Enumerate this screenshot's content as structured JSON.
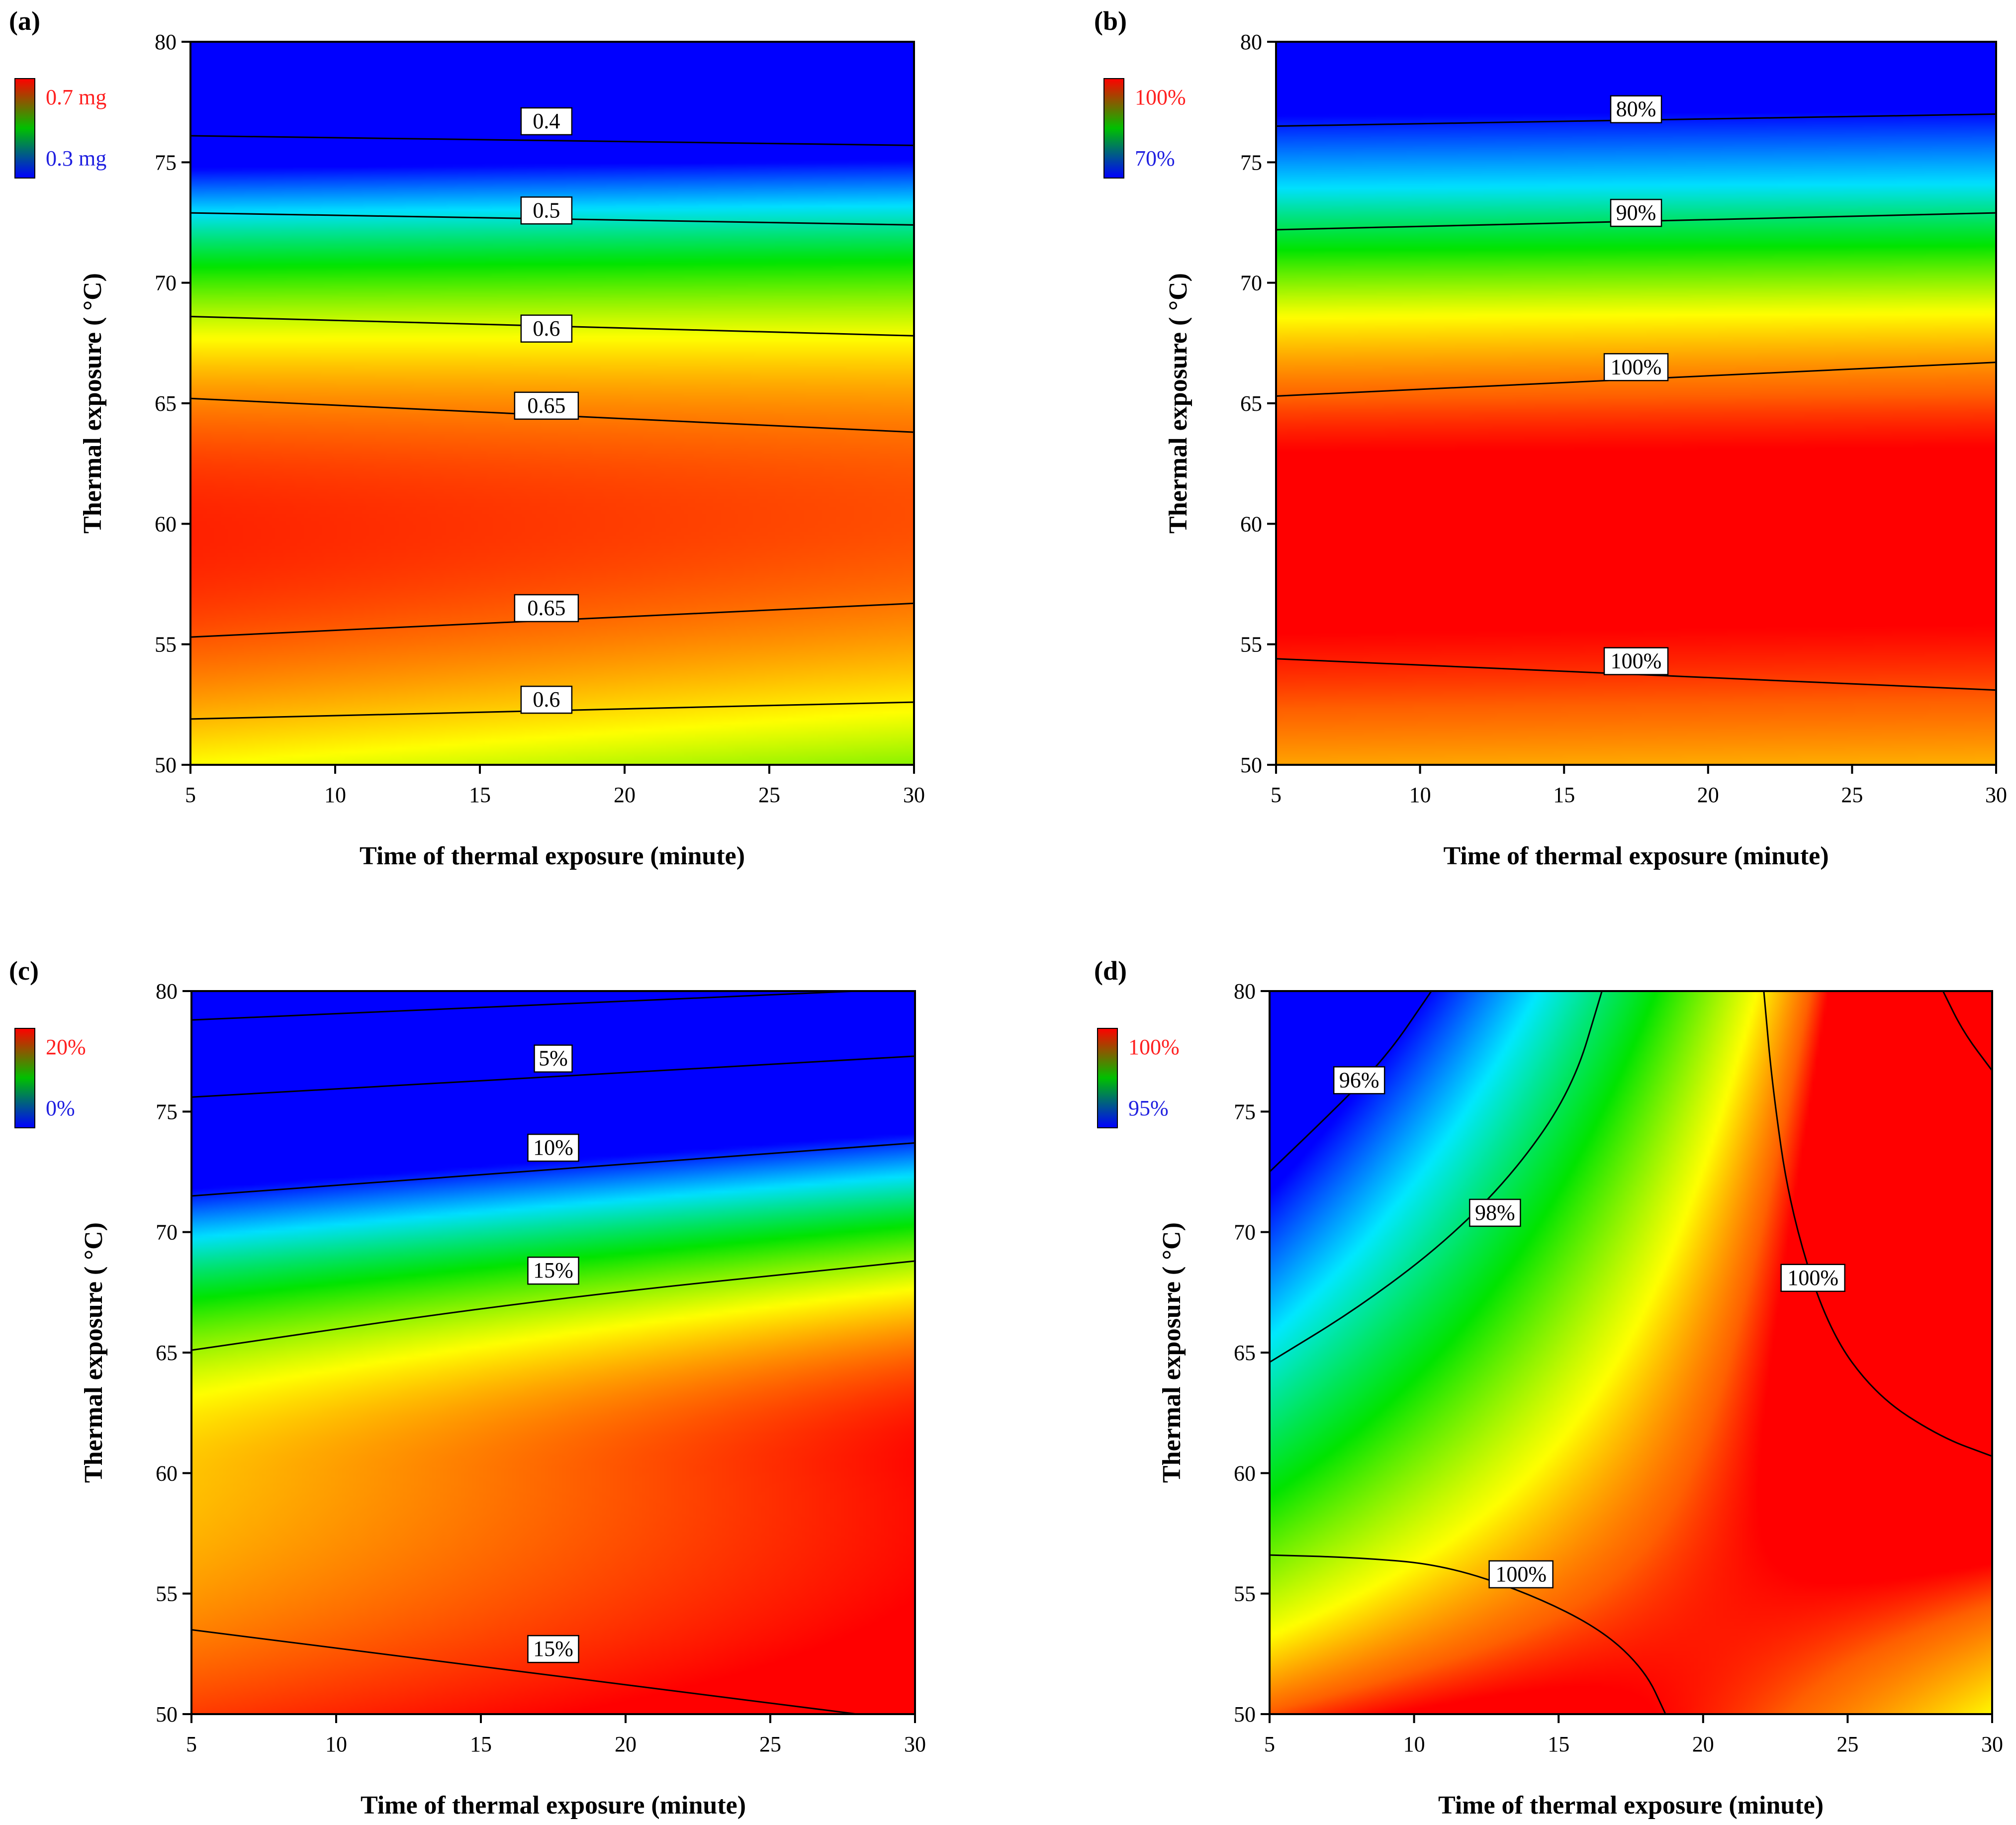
{
  "chart_data": [
    {
      "panel_label": "(a)",
      "type": "heatmap",
      "xlabel": "Time of thermal exposure (minute)",
      "ylabel": "Thermal exposure ( °C)",
      "xlim": [
        5,
        30
      ],
      "ylim": [
        50,
        80
      ],
      "xticks": [
        5,
        10,
        15,
        20,
        25,
        30
      ],
      "yticks": [
        50,
        55,
        60,
        65,
        70,
        75,
        80
      ],
      "color_legend": {
        "high_label": "0.7 mg",
        "high_color": "#ff2020",
        "low_label": "0.3 mg",
        "low_color": "#2020e0",
        "high_value": 0.7,
        "low_value": 0.3
      },
      "color_scale": [
        [
          0.3,
          "#0000ff"
        ],
        [
          0.4,
          "#00e0ff"
        ],
        [
          0.5,
          "#00e400"
        ],
        [
          0.6,
          "#ffff00"
        ],
        [
          0.68,
          "#ff5a00"
        ],
        [
          0.72,
          "#ff0000"
        ]
      ],
      "model": {
        "form": "quadratic",
        "a": -0.12,
        "bx": 0.0,
        "by": 0.0,
        "cx": 0.0,
        "cy": -0.9,
        "dxy": -0.06,
        "center": 0.66
      },
      "contours": [
        {
          "label": "0.4",
          "points": [
            [
              5,
              76.1
            ],
            [
              30,
              75.7
            ]
          ],
          "label_at": [
            17.3,
            76.7
          ]
        },
        {
          "label": "0.5",
          "points": [
            [
              5,
              72.9
            ],
            [
              30,
              72.4
            ]
          ],
          "label_at": [
            17.3,
            73.0
          ]
        },
        {
          "label": "0.6",
          "points": [
            [
              5,
              68.6
            ],
            [
              30,
              67.8
            ]
          ],
          "label_at": [
            17.3,
            68.1
          ]
        },
        {
          "label": "0.65",
          "points": [
            [
              5,
              65.2
            ],
            [
              30,
              63.8
            ]
          ],
          "label_at": [
            17.3,
            64.9
          ]
        },
        {
          "label": "0.65",
          "points": [
            [
              5,
              55.3
            ],
            [
              30,
              56.7
            ]
          ],
          "label_at": [
            17.3,
            56.5
          ]
        },
        {
          "label": "0.6",
          "points": [
            [
              5,
              51.9
            ],
            [
              30,
              52.6
            ]
          ],
          "label_at": [
            17.3,
            52.7
          ]
        }
      ]
    },
    {
      "panel_label": "(b)",
      "type": "heatmap",
      "xlabel": "Time of thermal exposure (minute)",
      "ylabel": "Thermal exposure ( °C)",
      "xlim": [
        5,
        30
      ],
      "ylim": [
        50,
        80
      ],
      "xticks": [
        5,
        10,
        15,
        20,
        25,
        30
      ],
      "yticks": [
        50,
        55,
        60,
        65,
        70,
        75,
        80
      ],
      "color_legend": {
        "high_label": "100%",
        "high_color": "#ff2020",
        "low_label": "70%",
        "low_color": "#2020e0",
        "high_value": 100,
        "low_value": 70
      },
      "color_scale": [
        [
          70,
          "#0000ff"
        ],
        [
          80,
          "#00e0ff"
        ],
        [
          87,
          "#00e400"
        ],
        [
          93,
          "#ffff00"
        ],
        [
          98,
          "#ff6000"
        ],
        [
          100,
          "#ff0000"
        ]
      ],
      "contours": [
        {
          "label": "80%",
          "points": [
            [
              5,
              76.5
            ],
            [
              30,
              77.0
            ]
          ],
          "label_at": [
            17.5,
            77.2
          ]
        },
        {
          "label": "90%",
          "points": [
            [
              5,
              72.2
            ],
            [
              30,
              72.9
            ]
          ],
          "label_at": [
            17.5,
            72.9
          ]
        },
        {
          "label": "100%",
          "points": [
            [
              5,
              65.3
            ],
            [
              30,
              66.7
            ]
          ],
          "label_at": [
            17.5,
            66.5
          ]
        },
        {
          "label": "100%",
          "points": [
            [
              5,
              54.4
            ],
            [
              30,
              53.1
            ]
          ],
          "label_at": [
            17.5,
            54.3
          ]
        }
      ]
    },
    {
      "panel_label": "(c)",
      "type": "heatmap",
      "xlabel": "Time of thermal exposure (minute)",
      "ylabel": "Thermal exposure ( °C)",
      "xlim": [
        5,
        30
      ],
      "ylim": [
        50,
        80
      ],
      "xticks": [
        5,
        10,
        15,
        20,
        25,
        30
      ],
      "yticks": [
        50,
        55,
        60,
        65,
        70,
        75,
        80
      ],
      "color_legend": {
        "high_label": "20%",
        "high_color": "#ff2020",
        "low_label": "0%",
        "low_color": "#2020e0",
        "high_value": 20,
        "low_value": 0
      },
      "color_scale": [
        [
          0,
          "#0000ff"
        ],
        [
          5,
          "#00e0ff"
        ],
        [
          10,
          "#00e400"
        ],
        [
          15,
          "#ffff00"
        ],
        [
          18,
          "#ff8000"
        ],
        [
          21,
          "#ff0000"
        ]
      ],
      "contours": [
        {
          "label": "",
          "points": [
            [
              5,
              78.8
            ],
            [
              28,
              80.0
            ]
          ],
          "label_at": null
        },
        {
          "label": "5%",
          "points": [
            [
              5,
              75.6
            ],
            [
              30,
              77.3
            ]
          ],
          "label_at": [
            17.5,
            77.2
          ]
        },
        {
          "label": "10%",
          "points": [
            [
              5,
              71.5
            ],
            [
              30,
              73.7
            ]
          ],
          "label_at": [
            17.5,
            73.5
          ]
        },
        {
          "label": "15%",
          "points": [
            [
              5,
              65.1
            ],
            [
              17,
              67.2
            ],
            [
              30,
              68.8
            ]
          ],
          "label_at": [
            17.5,
            68.4
          ]
        },
        {
          "label": "15%",
          "points": [
            [
              5,
              53.5
            ],
            [
              28,
              50.0
            ]
          ],
          "label_at": [
            17.5,
            52.7
          ]
        }
      ]
    },
    {
      "panel_label": "(d)",
      "type": "heatmap",
      "xlabel": "Time of thermal exposure (minute)",
      "ylabel": "Thermal exposure ( °C)",
      "xlim": [
        5,
        30
      ],
      "ylim": [
        50,
        80
      ],
      "xticks": [
        5,
        10,
        15,
        20,
        25,
        30
      ],
      "yticks": [
        50,
        55,
        60,
        65,
        70,
        75,
        80
      ],
      "color_legend": {
        "high_label": "100%",
        "high_color": "#ff2020",
        "low_label": "95%",
        "low_color": "#2020e0",
        "high_value": 100,
        "low_value": 95
      },
      "color_scale": [
        [
          95,
          "#0000ff"
        ],
        [
          96.5,
          "#00e8ff"
        ],
        [
          98,
          "#00e400"
        ],
        [
          99.2,
          "#ffff00"
        ],
        [
          99.8,
          "#ff6000"
        ],
        [
          100,
          "#ff0000"
        ]
      ],
      "contours": [
        {
          "label": "96%",
          "points": [
            [
              5,
              72.5
            ],
            [
              7,
              74.8
            ],
            [
              9,
              77.2
            ],
            [
              10.6,
              80.0
            ]
          ],
          "label_at": [
            8.1,
            76.3
          ]
        },
        {
          "label": "98%",
          "points": [
            [
              5,
              64.6
            ],
            [
              8,
              66.8
            ],
            [
              11,
              69.5
            ],
            [
              13.5,
              72.5
            ],
            [
              15.5,
              76.0
            ],
            [
              16.5,
              80.0
            ]
          ],
          "label_at": [
            12.8,
            70.8
          ]
        },
        {
          "label": "100%",
          "points": [
            [
              22.1,
              80.0
            ],
            [
              22.4,
              76.0
            ],
            [
              23.0,
              71.0
            ],
            [
              24.3,
              66.0
            ],
            [
              26.0,
              63.2
            ],
            [
              28.2,
              61.5
            ],
            [
              30,
              60.7
            ]
          ],
          "label_at": [
            23.8,
            68.1
          ]
        },
        {
          "label": "",
          "points": [
            [
              28.3,
              80.0
            ],
            [
              29.0,
              78.3
            ],
            [
              30,
              76.7
            ]
          ],
          "label_at": null
        },
        {
          "label": "100%",
          "points": [
            [
              5,
              56.6
            ],
            [
              8,
              56.5
            ],
            [
              11,
              56.2
            ],
            [
              14,
              55.0
            ],
            [
              16.5,
              53.5
            ],
            [
              18.0,
              51.8
            ],
            [
              18.7,
              50.0
            ]
          ],
          "label_at": [
            13.7,
            55.8
          ]
        }
      ]
    }
  ]
}
